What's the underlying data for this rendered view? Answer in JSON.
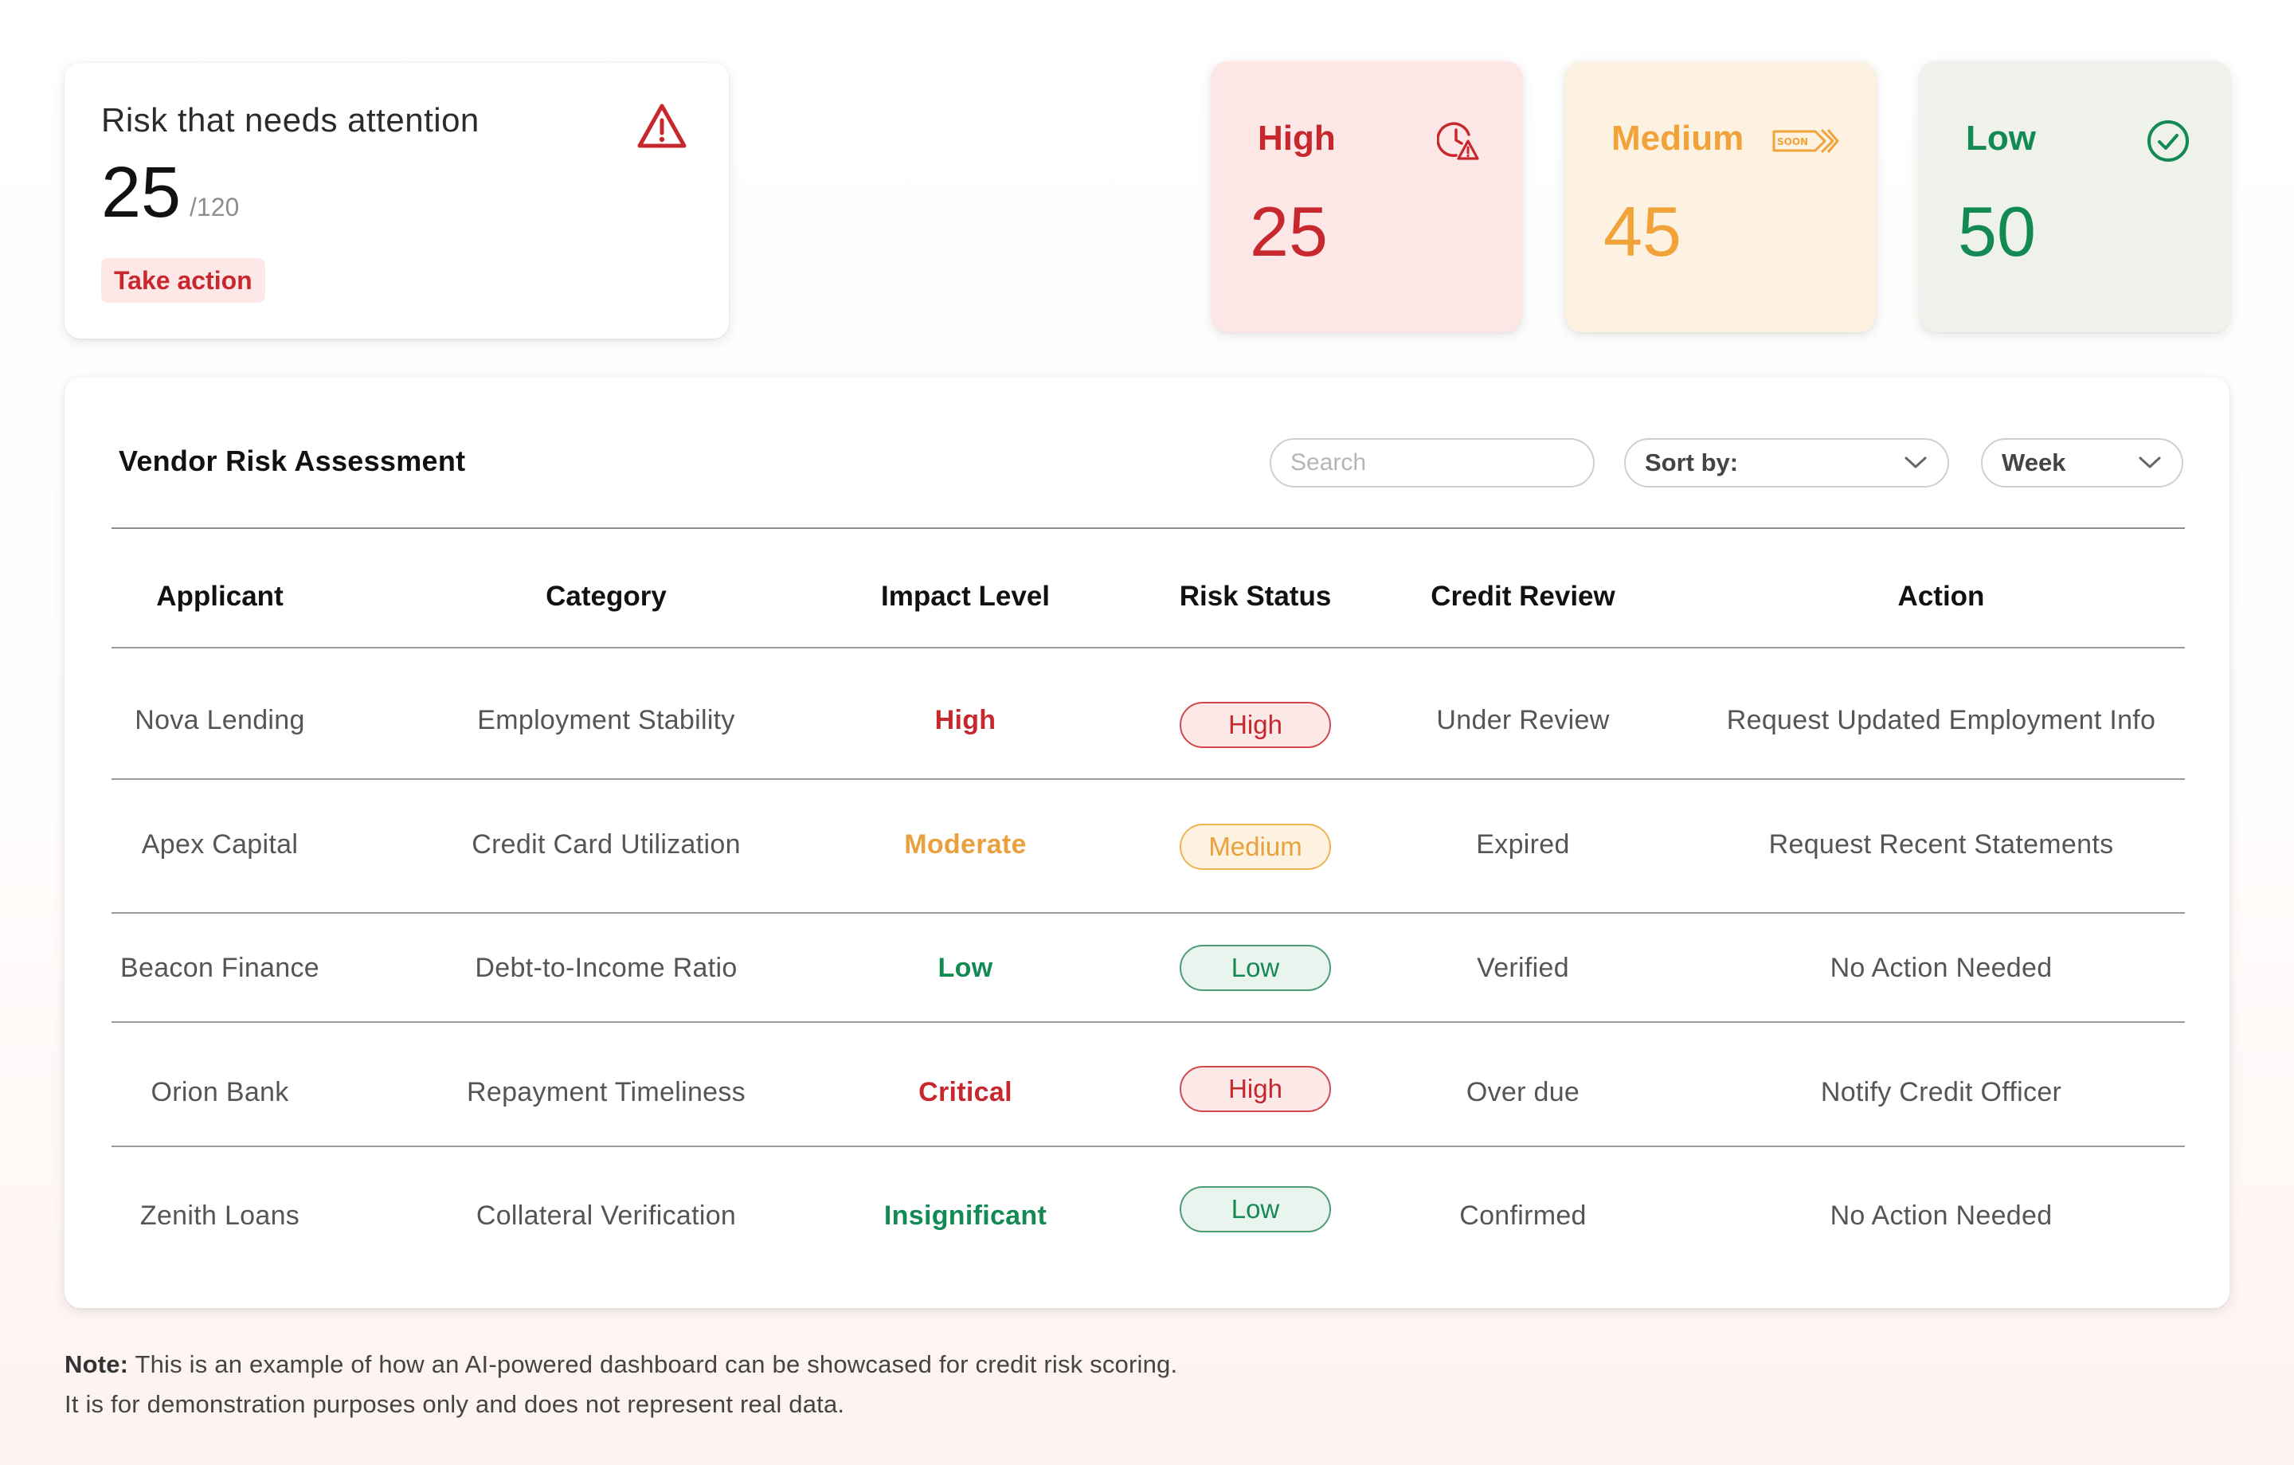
{
  "attention": {
    "title": "Risk that needs attention",
    "count": "25",
    "total": "/120",
    "action_label": "Take action",
    "icon": "warning-triangle-icon"
  },
  "levels": [
    {
      "label": "High",
      "value": "25",
      "icon": "clock-alert-icon",
      "color": "#c7282e"
    },
    {
      "label": "Medium",
      "value": "45",
      "icon": "soon-arrow-icon",
      "icon_text": "SOON",
      "color": "#f1a339"
    },
    {
      "label": "Low",
      "value": "50",
      "icon": "check-circle-icon",
      "color": "#138a53"
    }
  ],
  "table": {
    "title": "Vendor Risk Assessment",
    "search_placeholder": "Search",
    "sort_label": "Sort by:",
    "period_label": "Week",
    "columns": [
      "Applicant",
      "Category",
      "Impact Level",
      "Risk Status",
      "Credit Review",
      "Action"
    ],
    "rows": [
      {
        "applicant": "Nova Lending",
        "category": "Employment Stability",
        "impact": "High",
        "status": "High",
        "review": "Under Review",
        "action": "Request Updated Employment Info"
      },
      {
        "applicant": "Apex Capital",
        "category": "Credit Card Utilization",
        "impact": "Moderate",
        "status": "Medium",
        "review": "Expired",
        "action": "Request Recent Statements"
      },
      {
        "applicant": "Beacon Finance",
        "category": "Debt-to-Income Ratio",
        "impact": "Low",
        "status": "Low",
        "review": "Verified",
        "action": "No Action Needed"
      },
      {
        "applicant": "Orion Bank",
        "category": "Repayment Timeliness",
        "impact": "Critical",
        "status": "High",
        "review": "Over due",
        "action": "Notify Credit Officer"
      },
      {
        "applicant": "Zenith Loans",
        "category": "Collateral Verification",
        "impact": "Insignificant",
        "status": "Low",
        "review": "Confirmed",
        "action": "No Action Needed"
      }
    ]
  },
  "note": {
    "label": "Note:",
    "line1": "This is an example of how an AI-powered dashboard can be showcased for credit risk scoring.",
    "line2": "It is for demonstration purposes only and does not represent real data."
  },
  "colors": {
    "high": "#c7282e",
    "medium": "#e8a13c",
    "low": "#138a53"
  }
}
